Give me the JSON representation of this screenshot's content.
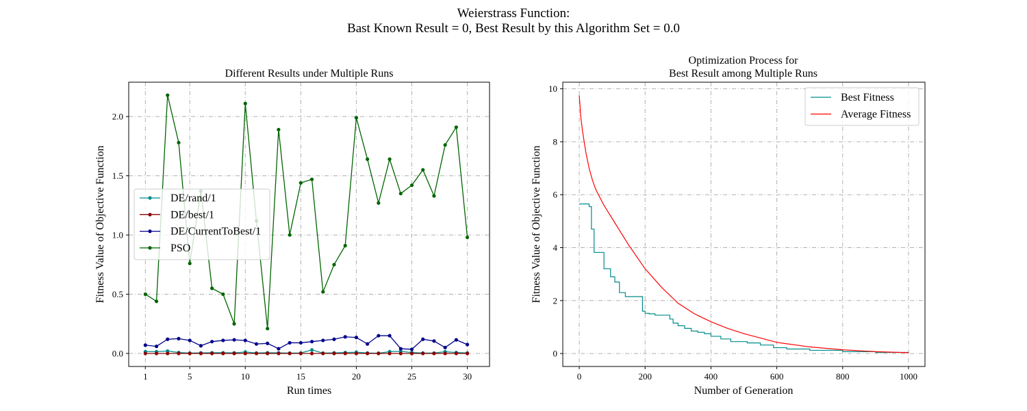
{
  "figure": {
    "suptitle_line1": "Weierstrass Function:",
    "suptitle_line2": "Bast Known Result = 0, Best Result by this Algorithm Set = 0.0"
  },
  "chart_data": [
    {
      "type": "line",
      "title": "Different Results under Multiple Runs",
      "xlabel": "Run times",
      "ylabel": "Fitness Value of Objective Function",
      "xlim": [
        -0.5,
        32
      ],
      "ylim": [
        -0.11,
        2.29
      ],
      "xticks": [
        1,
        5,
        10,
        15,
        20,
        25,
        30
      ],
      "yticks": [
        0.0,
        0.5,
        1.0,
        1.5,
        2.0
      ],
      "ytick_labels": [
        "0.0",
        "0.5",
        "1.0",
        "1.5",
        "2.0"
      ],
      "grid": true,
      "legend_position": "center-left",
      "x": [
        1,
        2,
        3,
        4,
        5,
        6,
        7,
        8,
        9,
        10,
        11,
        12,
        13,
        14,
        15,
        16,
        17,
        18,
        19,
        20,
        21,
        22,
        23,
        24,
        25,
        26,
        27,
        28,
        29,
        30
      ],
      "series": [
        {
          "name": "DE/rand/1",
          "color": "#008b8b",
          "values": [
            0.015,
            0.015,
            0.02,
            0.008,
            0.003,
            0.005,
            0.006,
            0.006,
            0.005,
            0.012,
            0.004,
            0.006,
            0.005,
            0.003,
            0.004,
            0.03,
            0.003,
            0.005,
            0.008,
            0.01,
            0.004,
            0.002,
            0.015,
            0.018,
            0.008,
            0.004,
            0.003,
            0.015,
            0.008,
            0.004
          ]
        },
        {
          "name": "DE/best/1",
          "color": "#8b0000",
          "values": [
            0.0,
            0.0,
            0.0,
            0.0,
            0.0,
            0.0,
            0.0,
            0.0,
            0.0,
            0.0,
            0.0,
            0.0,
            0.0,
            0.0,
            0.0,
            0.0,
            0.0,
            0.0,
            0.0,
            0.0,
            0.0,
            0.0,
            0.0,
            0.0,
            0.0,
            0.0,
            0.0,
            0.0,
            0.0,
            0.0
          ]
        },
        {
          "name": "DE/CurrentToBest/1",
          "color": "#00008b",
          "values": [
            0.07,
            0.06,
            0.12,
            0.125,
            0.11,
            0.065,
            0.1,
            0.11,
            0.115,
            0.11,
            0.08,
            0.085,
            0.04,
            0.09,
            0.09,
            0.1,
            0.11,
            0.12,
            0.14,
            0.135,
            0.08,
            0.15,
            0.15,
            0.04,
            0.035,
            0.12,
            0.105,
            0.05,
            0.115,
            0.075
          ]
        },
        {
          "name": "PSO",
          "color": "#006400",
          "values": [
            0.5,
            0.44,
            2.18,
            1.78,
            0.76,
            1.37,
            0.55,
            0.5,
            0.25,
            2.11,
            1.12,
            0.21,
            1.89,
            1.0,
            1.44,
            1.47,
            0.52,
            0.75,
            0.91,
            1.99,
            1.64,
            1.27,
            1.64,
            1.35,
            1.42,
            1.55,
            1.33,
            1.76,
            1.91,
            0.98
          ]
        }
      ]
    },
    {
      "type": "line",
      "title_line1": "Optimization Process for",
      "title_line2": "Best Result among Multiple Runs",
      "xlabel": "Number of Generation",
      "ylabel": "Fitness Value of Objective Function",
      "xlim": [
        -50,
        1050
      ],
      "ylim": [
        -0.49,
        10.25
      ],
      "xticks": [
        0,
        200,
        400,
        600,
        800,
        1000
      ],
      "yticks": [
        0,
        2,
        4,
        6,
        8,
        10
      ],
      "grid": true,
      "legend_position": "upper-right",
      "series": [
        {
          "name": "Best Fitness",
          "color": "#008b8b",
          "step": true,
          "x": [
            0,
            30,
            37,
            45,
            75,
            95,
            108,
            122,
            140,
            160,
            175,
            192,
            200,
            212,
            230,
            260,
            275,
            285,
            300,
            320,
            340,
            360,
            380,
            400,
            430,
            460,
            510,
            550,
            590,
            630,
            700,
            800,
            900,
            1000
          ],
          "values": [
            5.65,
            5.55,
            4.7,
            3.82,
            3.2,
            2.9,
            2.7,
            2.3,
            2.15,
            2.15,
            2.15,
            1.6,
            1.52,
            1.5,
            1.45,
            1.45,
            1.3,
            1.15,
            1.05,
            0.95,
            0.85,
            0.8,
            0.75,
            0.65,
            0.55,
            0.45,
            0.4,
            0.32,
            0.22,
            0.17,
            0.12,
            0.07,
            0.04,
            0.02
          ]
        },
        {
          "name": "Average Fitness",
          "color": "#ff0000",
          "step": false,
          "x": [
            0,
            5,
            10,
            20,
            30,
            40,
            50,
            75,
            100,
            150,
            200,
            250,
            300,
            350,
            400,
            450,
            500,
            600,
            700,
            800,
            900,
            1000
          ],
          "values": [
            9.75,
            8.9,
            8.4,
            7.6,
            7.0,
            6.55,
            6.2,
            5.6,
            5.1,
            4.1,
            3.2,
            2.5,
            1.9,
            1.5,
            1.2,
            0.95,
            0.75,
            0.42,
            0.25,
            0.14,
            0.07,
            0.03
          ]
        }
      ]
    }
  ]
}
